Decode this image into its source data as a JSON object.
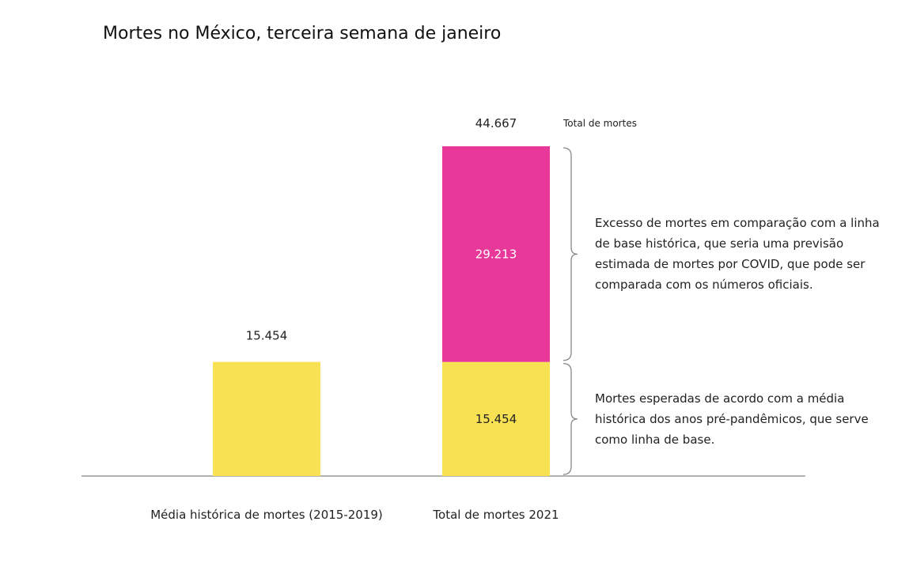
{
  "chart_data": {
    "type": "stacked-bar",
    "title": "Mortes no México, terceira semana de janeiro",
    "categories": [
      "Média histórica de mortes (2015-2019)",
      "Total de mortes 2021"
    ],
    "series": [
      {
        "color": "#f9e154",
        "values": [
          15454,
          15454
        ],
        "value_labels": [
          "15.454",
          "15.454"
        ]
      },
      {
        "color": "#e8389a",
        "values": [
          null,
          29213
        ],
        "value_labels": [
          null,
          "29.213"
        ]
      }
    ],
    "totals": {
      "values": [
        null,
        44667
      ],
      "value_labels": [
        null,
        "44.667"
      ]
    },
    "annotations": [
      {
        "text": "Total de mortes"
      },
      {
        "text": "Excesso de mortes em comparação com a linha de base histórica, que seria uma previsão estimada de mortes por COVID, que pode ser comparada com os números oficiais."
      },
      {
        "text": "Mortes esperadas de acordo com a média histórica dos anos pré-pandêmicos, que serve como linha de base."
      }
    ]
  }
}
